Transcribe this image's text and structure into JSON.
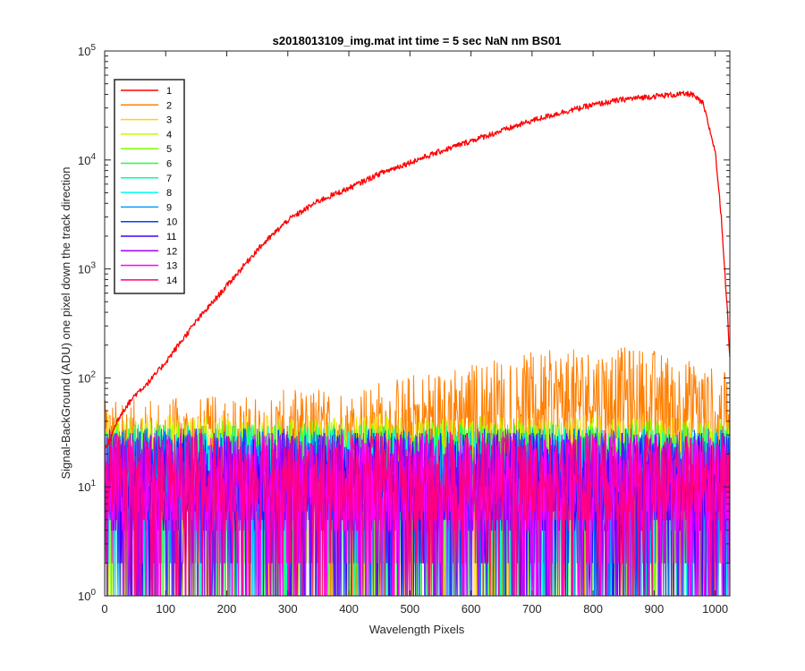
{
  "chart_data": {
    "type": "line",
    "title": "s2018013109_img.mat int time = 5 sec  NaN nm BS01",
    "xlabel": "Wavelength Pixels",
    "ylabel": "Signal-BackGround (ADU) one pixel down the track direction",
    "xlim": [
      0,
      1024
    ],
    "ylim": [
      1,
      100000
    ],
    "yscale": "log",
    "x_ticks": [
      0,
      100,
      200,
      300,
      400,
      500,
      600,
      700,
      800,
      900,
      1000
    ],
    "x_tick_labels": [
      "0",
      "100",
      "200",
      "300",
      "400",
      "500",
      "600",
      "700",
      "800",
      "900",
      "1000"
    ],
    "y_ticks": [
      1,
      10,
      100,
      1000,
      10000,
      100000
    ],
    "y_tick_labels": [
      {
        "base": "10",
        "exp": "0"
      },
      {
        "base": "10",
        "exp": "1"
      },
      {
        "base": "10",
        "exp": "2"
      },
      {
        "base": "10",
        "exp": "3"
      },
      {
        "base": "10",
        "exp": "4"
      },
      {
        "base": "10",
        "exp": "5"
      }
    ],
    "grid": false,
    "legend_position": "top-left",
    "series": [
      {
        "name": "1",
        "color": "#ff0000",
        "kind": "signal",
        "x": [
          0,
          10,
          20,
          30,
          50,
          75,
          100,
          150,
          200,
          250,
          300,
          350,
          400,
          450,
          500,
          550,
          600,
          650,
          700,
          750,
          800,
          850,
          900,
          940,
          960,
          980,
          1000,
          1010,
          1020,
          1024
        ],
        "values": [
          22,
          28,
          40,
          50,
          70,
          95,
          140,
          330,
          700,
          1500,
          2800,
          4200,
          5500,
          7500,
          9500,
          12000,
          15000,
          18500,
          23000,
          27500,
          32000,
          36000,
          38500,
          40000,
          40500,
          33000,
          12000,
          3000,
          400,
          150
        ]
      },
      {
        "name": "2",
        "color": "#ff7f00",
        "kind": "noise",
        "x": [
          0,
          200,
          400,
          500,
          600,
          700,
          800,
          900,
          1000,
          1024
        ],
        "values": [
          20,
          22,
          28,
          35,
          45,
          55,
          62,
          60,
          40,
          35
        ]
      },
      {
        "name": "3",
        "color": "#ffd700",
        "kind": "noise",
        "x": [
          0,
          1024
        ],
        "values": [
          15,
          15
        ]
      },
      {
        "name": "4",
        "color": "#bfff00",
        "kind": "noise",
        "x": [
          0,
          1024
        ],
        "values": [
          14,
          14
        ]
      },
      {
        "name": "5",
        "color": "#80ff00",
        "kind": "noise",
        "x": [
          0,
          1024
        ],
        "values": [
          13,
          13
        ]
      },
      {
        "name": "6",
        "color": "#20ff40",
        "kind": "noise",
        "x": [
          0,
          1024
        ],
        "values": [
          12,
          12
        ]
      },
      {
        "name": "7",
        "color": "#00ff9f",
        "kind": "noise",
        "x": [
          0,
          1024
        ],
        "values": [
          12,
          12
        ]
      },
      {
        "name": "8",
        "color": "#00ffee",
        "kind": "noise",
        "x": [
          0,
          1024
        ],
        "values": [
          11,
          11
        ]
      },
      {
        "name": "9",
        "color": "#00a0ff",
        "kind": "noise",
        "x": [
          0,
          1024
        ],
        "values": [
          11,
          11
        ]
      },
      {
        "name": "10",
        "color": "#0040ff",
        "kind": "noise",
        "x": [
          0,
          1024
        ],
        "values": [
          11,
          11
        ]
      },
      {
        "name": "11",
        "color": "#4000ff",
        "kind": "noise",
        "x": [
          0,
          1024
        ],
        "values": [
          10,
          10
        ]
      },
      {
        "name": "12",
        "color": "#a000ff",
        "kind": "noise",
        "x": [
          0,
          1024
        ],
        "values": [
          10,
          10
        ]
      },
      {
        "name": "13",
        "color": "#ff00ff",
        "kind": "noise",
        "x": [
          0,
          1024
        ],
        "values": [
          10,
          10
        ]
      },
      {
        "name": "14",
        "color": "#ff0080",
        "kind": "noise",
        "x": [
          0,
          1024
        ],
        "values": [
          11,
          11
        ]
      }
    ]
  }
}
